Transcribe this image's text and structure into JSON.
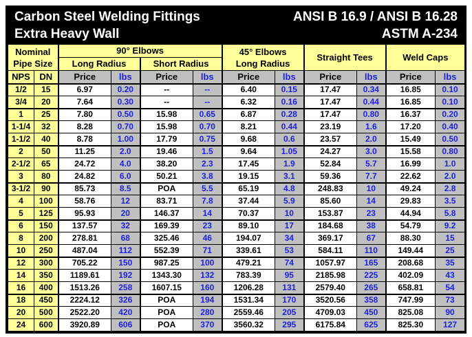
{
  "title": {
    "line1_left": "Carbon Steel Welding Fittings",
    "line1_right": "ANSI B 16.9 / ANSI B 16.28",
    "line2_left": "Extra Heavy Wall",
    "line2_right": "ASTM A-234"
  },
  "header": {
    "nominal_line1": "Nominal",
    "nominal_line2": "Pipe Size",
    "elbows90": "90° Elbows",
    "long_radius": "Long Radius",
    "short_radius": "Short Radius",
    "elbows45_line1": "45° Elbows",
    "elbows45_line2": "Long Radius",
    "straight_tees": "Straight Tees",
    "weld_caps": "Weld Caps",
    "nps": "NPS",
    "dn": "DN",
    "price": "Price",
    "lbs": "lbs"
  },
  "colors": {
    "yellow": "#ffff99",
    "gray": "#c0c0c0",
    "blue": "#1e1ee0",
    "bar-bg": "#000000",
    "bar-text": "#ffffff",
    "line": "#000000"
  },
  "table": {
    "columns": [
      "NPS",
      "DN",
      "90 LR Price",
      "90 LR lbs",
      "90 SR Price",
      "90 SR lbs",
      "45 LR Price",
      "45 LR lbs",
      "Tees Price",
      "Tees lbs",
      "Caps Price",
      "Caps lbs"
    ],
    "group_breaks_after": [
      1,
      4,
      7,
      10,
      13,
      16
    ],
    "rows": [
      {
        "nps": "1/2",
        "dn": "15",
        "cells": [
          "6.97",
          "0.20",
          "--",
          "--",
          "6.40",
          "0.15",
          "17.47",
          "0.34",
          "16.85",
          "0.10"
        ]
      },
      {
        "nps": "3/4",
        "dn": "20",
        "cells": [
          "7.64",
          "0.30",
          "--",
          "--",
          "6.32",
          "0.16",
          "17.47",
          "0.44",
          "16.85",
          "0.10"
        ]
      },
      {
        "nps": "1",
        "dn": "25",
        "cells": [
          "7.80",
          "0.50",
          "15.98",
          "0.65",
          "6.87",
          "0.28",
          "17.47",
          "0.80",
          "16.37",
          "0.20"
        ]
      },
      {
        "nps": "1-1/4",
        "dn": "32",
        "cells": [
          "8.28",
          "0.70",
          "15.98",
          "0.70",
          "8.21",
          "0.44",
          "23.19",
          "1.6",
          "17.20",
          "0.40"
        ]
      },
      {
        "nps": "1-1/2",
        "dn": "40",
        "cells": [
          "8.78",
          "1.00",
          "17.79",
          "0.75",
          "9.68",
          "0.6",
          "23.57",
          "2.0",
          "15.49",
          "0.50"
        ]
      },
      {
        "nps": "2",
        "dn": "50",
        "cells": [
          "11.25",
          "2.0",
          "19.46",
          "1.5",
          "9.64",
          "1.05",
          "24.27",
          "3.0",
          "15.58",
          "0.80"
        ]
      },
      {
        "nps": "2-1/2",
        "dn": "65",
        "cells": [
          "24.72",
          "4.0",
          "38.20",
          "2.3",
          "17.45",
          "1.9",
          "52.84",
          "5.7",
          "16.99",
          "1.0"
        ]
      },
      {
        "nps": "3",
        "dn": "80",
        "cells": [
          "24.82",
          "6.0",
          "50.21",
          "3.8",
          "19.15",
          "3.1",
          "59.36",
          "7.7",
          "22.62",
          "2.0"
        ]
      },
      {
        "nps": "3-1/2",
        "dn": "90",
        "cells": [
          "85.73",
          "8.5",
          "POA",
          "5.5",
          "65.19",
          "4.8",
          "248.83",
          "10",
          "49.24",
          "2.8"
        ]
      },
      {
        "nps": "4",
        "dn": "100",
        "cells": [
          "58.76",
          "12",
          "83.71",
          "7.8",
          "37.44",
          "5.9",
          "85.60",
          "14",
          "29.83",
          "3.5"
        ]
      },
      {
        "nps": "5",
        "dn": "125",
        "cells": [
          "95.93",
          "20",
          "146.37",
          "14",
          "70.37",
          "10",
          "153.87",
          "23",
          "44.94",
          "5.8"
        ]
      },
      {
        "nps": "6",
        "dn": "150",
        "cells": [
          "137.57",
          "32",
          "169.39",
          "23",
          "89.10",
          "17",
          "184.68",
          "38",
          "54.79",
          "9.2"
        ]
      },
      {
        "nps": "8",
        "dn": "200",
        "cells": [
          "278.81",
          "68",
          "325.46",
          "46",
          "194.07",
          "34",
          "369.17",
          "67",
          "88.30",
          "15"
        ]
      },
      {
        "nps": "10",
        "dn": "250",
        "cells": [
          "487.04",
          "112",
          "552.39",
          "71",
          "339.61",
          "53",
          "584.11",
          "110",
          "149.44",
          "25"
        ]
      },
      {
        "nps": "12",
        "dn": "300",
        "cells": [
          "705.22",
          "150",
          "987.25",
          "100",
          "479.21",
          "74",
          "1057.97",
          "165",
          "208.68",
          "35"
        ]
      },
      {
        "nps": "14",
        "dn": "350",
        "cells": [
          "1189.61",
          "192",
          "1343.30",
          "132",
          "783.39",
          "95",
          "2185.98",
          "225",
          "402.09",
          "43"
        ]
      },
      {
        "nps": "16",
        "dn": "400",
        "cells": [
          "1513.26",
          "258",
          "1607.15",
          "160",
          "1206.28",
          "131",
          "2579.40",
          "265",
          "658.81",
          "54"
        ]
      },
      {
        "nps": "18",
        "dn": "450",
        "cells": [
          "2224.12",
          "326",
          "POA",
          "194",
          "1531.34",
          "170",
          "3520.56",
          "358",
          "747.99",
          "73"
        ]
      },
      {
        "nps": "20",
        "dn": "500",
        "cells": [
          "2522.20",
          "420",
          "POA",
          "280",
          "2559.46",
          "205",
          "4709.03",
          "450",
          "825.08",
          "90"
        ]
      },
      {
        "nps": "24",
        "dn": "600",
        "cells": [
          "3920.89",
          "606",
          "POA",
          "370",
          "3560.32",
          "295",
          "6175.84",
          "625",
          "825.30",
          "127"
        ]
      }
    ]
  }
}
